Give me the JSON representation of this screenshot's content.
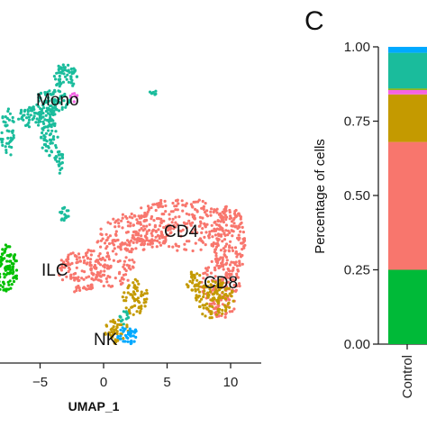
{
  "chart_data": [
    {
      "type": "scatter",
      "panel": "",
      "xlabel": "UMAP_1",
      "x_ticks": [
        -5,
        0,
        5,
        10
      ],
      "xlim": [
        -8.5,
        12
      ],
      "ylim": [
        -7,
        12.5
      ],
      "clusters": [
        {
          "name": "Mono",
          "color": "#1ABC9C",
          "label_pos": [
            -3,
            9.8
          ]
        },
        {
          "name": "CD4",
          "color": "#F8766D",
          "label_pos": [
            6,
            3.2
          ]
        },
        {
          "name": "CD8",
          "color": "#C49A00",
          "label_pos": [
            9.5,
            -1.8
          ]
        },
        {
          "name": "ILC",
          "color": "#F8766D",
          "label_pos": [
            -3.5,
            -0.6
          ]
        },
        {
          "name": "NK",
          "color": "#00A9FF",
          "label_pos": [
            0.2,
            -5.5
          ]
        }
      ],
      "side_cluster": {
        "color": "#00C000"
      }
    },
    {
      "type": "bar",
      "panel": "C",
      "categories": [
        "Control"
      ],
      "ylabel": "Percentage of cells",
      "ylim": [
        0,
        1
      ],
      "y_ticks": [
        "0.00",
        "0.25",
        "0.50",
        "0.75",
        "1.00"
      ],
      "stacked_series": [
        {
          "color": "#00BA38",
          "value": 0.25
        },
        {
          "color": "#F8766D",
          "value": 0.43
        },
        {
          "color": "#C49A00",
          "value": 0.16
        },
        {
          "color": "#F564E3",
          "value": 0.015
        },
        {
          "color": "#7CAE00",
          "value": 0.005
        },
        {
          "color": "#1ABC9C",
          "value": 0.12
        },
        {
          "color": "#00A9FF",
          "value": 0.02
        }
      ]
    }
  ]
}
